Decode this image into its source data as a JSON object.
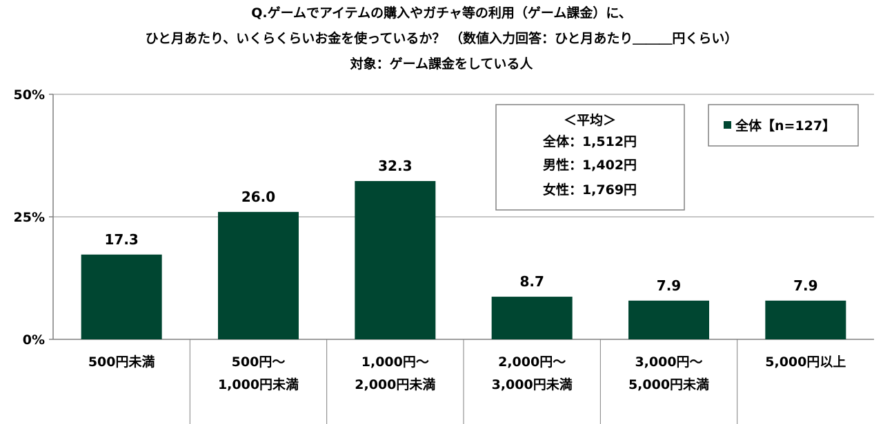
{
  "chart_data": {
    "type": "bar",
    "title_lines": [
      "Q.ゲームでアイテムの購入やガチャ等の利用（ゲーム課金）に、",
      "ひと月あたり、いくらくらいお金を使っているか？ （数値入力回答：ひと月あたり＿＿＿円くらい）",
      "対象：ゲーム課金をしている人"
    ],
    "categories": [
      [
        "500円未満"
      ],
      [
        "500円～",
        "1,000円未満"
      ],
      [
        "1,000円～",
        "2,000円未満"
      ],
      [
        "2,000円～",
        "3,000円未満"
      ],
      [
        "3,000円～",
        "5,000円未満"
      ],
      [
        "5,000円以上"
      ]
    ],
    "series": [
      {
        "name": "全体【n=127】",
        "values": [
          17.3,
          26.0,
          32.3,
          8.7,
          7.9,
          7.9
        ],
        "color": "#004631"
      }
    ],
    "value_labels": [
      "17.3",
      "26.0",
      "32.3",
      "8.7",
      "7.9",
      "7.9"
    ],
    "ylim": [
      0,
      50
    ],
    "yticks": [
      0,
      25,
      50
    ],
    "ytick_labels": [
      "0%",
      "25%",
      "50%"
    ],
    "grid": true,
    "legend_position": "top-right",
    "annotation_lines": [
      "＜平均＞",
      "全体：1,512円",
      "男性：1,402円",
      "女性：1,769円"
    ]
  }
}
